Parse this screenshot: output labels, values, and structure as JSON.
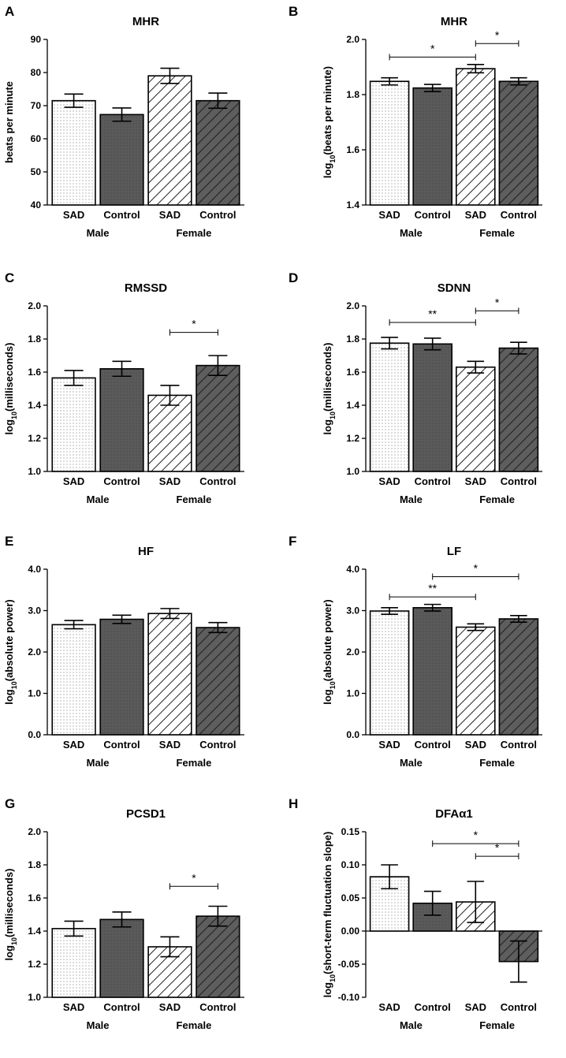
{
  "figure": {
    "group_labels": [
      "Male",
      "Female"
    ]
  },
  "chart_data": [
    {
      "panel": "A",
      "type": "bar",
      "title": "MHR",
      "ylabel": "beats per minute",
      "categories": [
        "SAD",
        "Control",
        "SAD",
        "Control"
      ],
      "groups": [
        "Male",
        "Male",
        "Female",
        "Female"
      ],
      "values": [
        71.5,
        67.3,
        79.0,
        71.5
      ],
      "errors": [
        2.0,
        2.0,
        2.3,
        2.3
      ],
      "ylim": [
        40,
        90
      ],
      "yticks": [
        40,
        50,
        60,
        70,
        80,
        90
      ],
      "decimals": 0,
      "significance": []
    },
    {
      "panel": "B",
      "type": "bar",
      "title": "MHR",
      "ylabel": "log10(beats per minute)",
      "categories": [
        "SAD",
        "Control",
        "SAD",
        "Control"
      ],
      "groups": [
        "Male",
        "Male",
        "Female",
        "Female"
      ],
      "values": [
        1.848,
        1.824,
        1.894,
        1.848
      ],
      "errors": [
        0.013,
        0.013,
        0.015,
        0.013
      ],
      "ylim": [
        1.4,
        2.0
      ],
      "yticks": [
        1.4,
        1.6,
        1.8,
        2.0
      ],
      "decimals": 1,
      "significance": [
        {
          "from": 0,
          "to": 2,
          "label": "*",
          "y": 1.936
        },
        {
          "from": 2,
          "to": 3,
          "label": "*",
          "y": 1.985
        }
      ]
    },
    {
      "panel": "C",
      "type": "bar",
      "title": "RMSSD",
      "ylabel": "log10(milliseconds)",
      "categories": [
        "SAD",
        "Control",
        "SAD",
        "Control"
      ],
      "groups": [
        "Male",
        "Male",
        "Female",
        "Female"
      ],
      "values": [
        1.565,
        1.62,
        1.46,
        1.64
      ],
      "errors": [
        0.045,
        0.045,
        0.06,
        0.06
      ],
      "ylim": [
        1.0,
        2.0
      ],
      "yticks": [
        1.0,
        1.2,
        1.4,
        1.6,
        1.8,
        2.0
      ],
      "decimals": 1,
      "significance": [
        {
          "from": 2,
          "to": 3,
          "label": "*",
          "y": 1.84
        }
      ]
    },
    {
      "panel": "D",
      "type": "bar",
      "title": "SDNN",
      "ylabel": "log10(milliseconds)",
      "categories": [
        "SAD",
        "Control",
        "SAD",
        "Control"
      ],
      "groups": [
        "Male",
        "Male",
        "Female",
        "Female"
      ],
      "values": [
        1.775,
        1.77,
        1.63,
        1.745
      ],
      "errors": [
        0.035,
        0.035,
        0.035,
        0.035
      ],
      "ylim": [
        1.0,
        2.0
      ],
      "yticks": [
        1.0,
        1.2,
        1.4,
        1.6,
        1.8,
        2.0
      ],
      "decimals": 1,
      "significance": [
        {
          "from": 0,
          "to": 2,
          "label": "**",
          "y": 1.9
        },
        {
          "from": 2,
          "to": 3,
          "label": "*",
          "y": 1.97
        }
      ]
    },
    {
      "panel": "E",
      "type": "bar",
      "title": "HF",
      "ylabel": "log10(absolute power)",
      "categories": [
        "SAD",
        "Control",
        "SAD",
        "Control"
      ],
      "groups": [
        "Male",
        "Male",
        "Female",
        "Female"
      ],
      "values": [
        2.66,
        2.79,
        2.93,
        2.59
      ],
      "errors": [
        0.1,
        0.1,
        0.12,
        0.12
      ],
      "ylim": [
        0.0,
        4.0
      ],
      "yticks": [
        0.0,
        1.0,
        2.0,
        3.0,
        4.0
      ],
      "decimals": 1,
      "significance": []
    },
    {
      "panel": "F",
      "type": "bar",
      "title": "LF",
      "ylabel": "log10(absolute power)",
      "categories": [
        "SAD",
        "Control",
        "SAD",
        "Control"
      ],
      "groups": [
        "Male",
        "Male",
        "Female",
        "Female"
      ],
      "values": [
        2.99,
        3.07,
        2.6,
        2.8
      ],
      "errors": [
        0.08,
        0.08,
        0.08,
        0.08
      ],
      "ylim": [
        0.0,
        4.0
      ],
      "yticks": [
        0.0,
        1.0,
        2.0,
        3.0,
        4.0
      ],
      "decimals": 1,
      "significance": [
        {
          "from": 0,
          "to": 2,
          "label": "**",
          "y": 3.33
        },
        {
          "from": 1,
          "to": 3,
          "label": "*",
          "y": 3.82
        }
      ]
    },
    {
      "panel": "G",
      "type": "bar",
      "title": "PCSD1",
      "ylabel": "log10(milliseconds)",
      "categories": [
        "SAD",
        "Control",
        "SAD",
        "Control"
      ],
      "groups": [
        "Male",
        "Male",
        "Female",
        "Female"
      ],
      "values": [
        1.415,
        1.47,
        1.305,
        1.49
      ],
      "errors": [
        0.045,
        0.045,
        0.06,
        0.06
      ],
      "ylim": [
        1.0,
        2.0
      ],
      "yticks": [
        1.0,
        1.2,
        1.4,
        1.6,
        1.8,
        2.0
      ],
      "decimals": 1,
      "significance": [
        {
          "from": 2,
          "to": 3,
          "label": "*",
          "y": 1.67
        }
      ]
    },
    {
      "panel": "H",
      "type": "bar",
      "title": "DFAα1",
      "ylabel": "log10(short-term fluctuation slope)",
      "categories": [
        "SAD",
        "Control",
        "SAD",
        "Control"
      ],
      "groups": [
        "Male",
        "Male",
        "Female",
        "Female"
      ],
      "values": [
        0.082,
        0.042,
        0.044,
        -0.046
      ],
      "errors": [
        0.018,
        0.018,
        0.031,
        0.031
      ],
      "ylim": [
        -0.1,
        0.15
      ],
      "yticks": [
        -0.1,
        -0.05,
        0.0,
        0.05,
        0.1,
        0.15
      ],
      "decimals": 2,
      "significance": [
        {
          "from": 1,
          "to": 3,
          "label": "*",
          "y": 0.132
        },
        {
          "from": 2,
          "to": 3,
          "label": "*",
          "y": 0.113
        }
      ]
    }
  ]
}
